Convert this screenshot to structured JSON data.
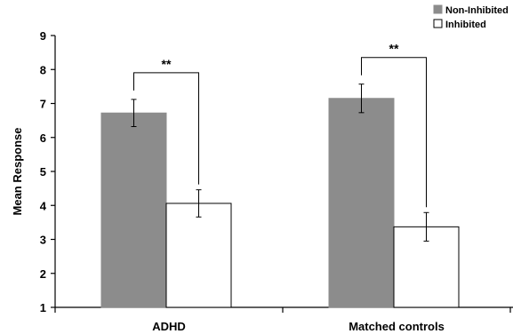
{
  "chart_data": {
    "type": "bar",
    "categories": [
      "ADHD",
      "Matched controls"
    ],
    "series": [
      {
        "name": "Non-Inhibited",
        "values": [
          6.72,
          7.15
        ],
        "errors": [
          0.4,
          0.42
        ],
        "color": "#8c8c8c"
      },
      {
        "name": "Inhibited",
        "values": [
          4.06,
          3.37
        ],
        "errors": [
          0.4,
          0.42
        ],
        "color": "#ffffff"
      }
    ],
    "ylabel": "Mean Response",
    "xlabel": "",
    "ylim": [
      1,
      9
    ],
    "yticks": [
      1,
      2,
      3,
      4,
      5,
      6,
      7,
      8,
      9
    ],
    "significance": [
      "**",
      "**"
    ],
    "legend_position": "top-right",
    "grid": false
  }
}
